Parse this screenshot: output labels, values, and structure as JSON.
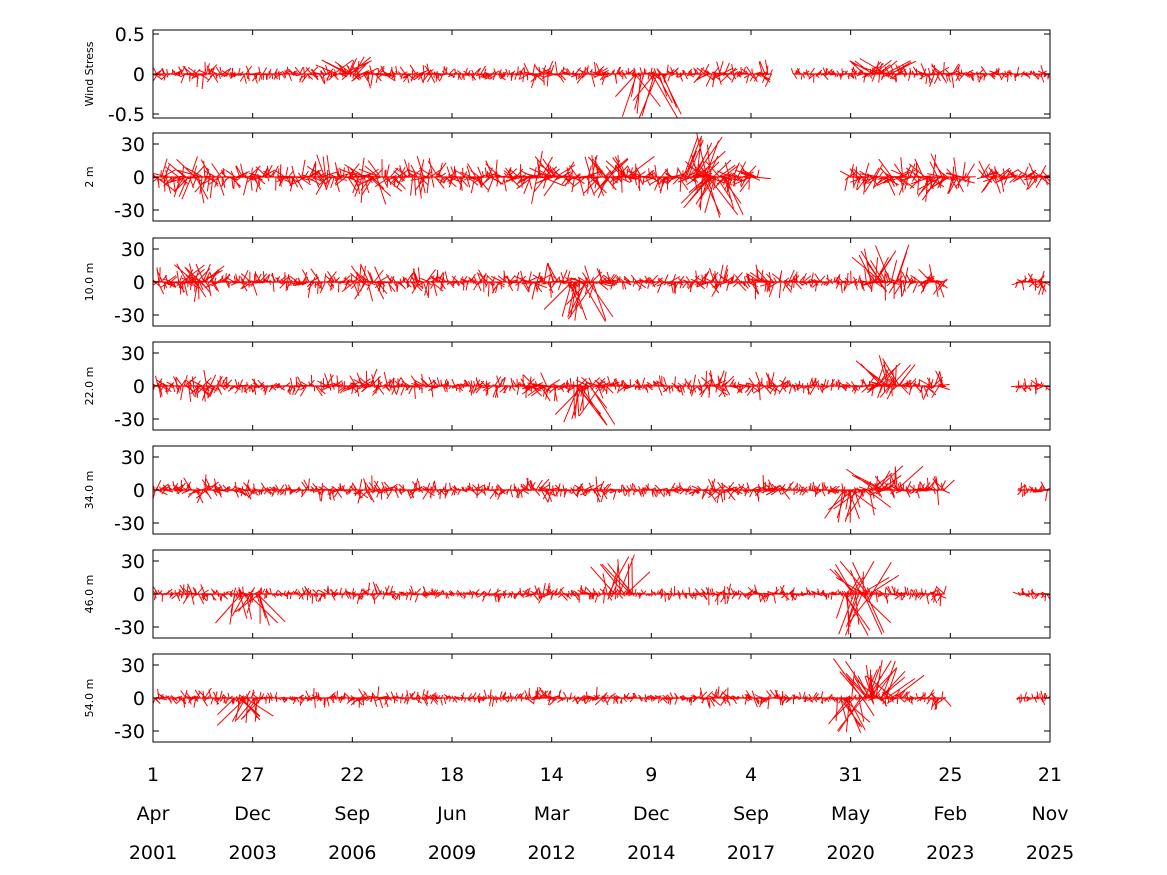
{
  "colors": {
    "series": "#ff0000",
    "axes": "#000000",
    "background": "#ffffff"
  },
  "chart_data": {
    "type": "stick-plot",
    "time_axis": {
      "range": [
        "2001-04-01",
        "2025-11-21"
      ],
      "ticks": [
        {
          "day": "1",
          "month": "Apr",
          "year": "2001",
          "date": "2001-04-01"
        },
        {
          "day": "27",
          "month": "Dec",
          "year": "2003",
          "date": "2003-12-27"
        },
        {
          "day": "22",
          "month": "Sep",
          "year": "2006",
          "date": "2006-09-22"
        },
        {
          "day": "18",
          "month": "Jun",
          "year": "2009",
          "date": "2009-06-18"
        },
        {
          "day": "14",
          "month": "Mar",
          "year": "2012",
          "date": "2012-03-14"
        },
        {
          "day": "9",
          "month": "Dec",
          "year": "2014",
          "date": "2014-12-09"
        },
        {
          "day": "4",
          "month": "Sep",
          "year": "2017",
          "date": "2017-09-04"
        },
        {
          "day": "31",
          "month": "May",
          "year": "2020",
          "date": "2020-05-31"
        },
        {
          "day": "25",
          "month": "Feb",
          "year": "2023",
          "date": "2023-02-25"
        },
        {
          "day": "21",
          "month": "Nov",
          "year": "2025",
          "date": "2025-11-21"
        }
      ]
    },
    "panels": [
      {
        "ylabel": "Wind Stress",
        "ylim": [
          -0.55,
          0.55
        ],
        "yticks": [
          {
            "v": 0.5,
            "label": "0.5"
          },
          {
            "v": 0,
            "label": "0"
          },
          {
            "v": -0.5,
            "label": "-0.5"
          }
        ],
        "amplitude": 0.2,
        "segments": [
          [
            "2001-04-20",
            "2018-04-01"
          ],
          [
            "2018-11-01",
            "2025-11-21"
          ]
        ],
        "spikes": [
          [
            "2014-11-15",
            -0.55
          ],
          [
            "2006-07-01",
            0.22
          ],
          [
            "2021-03-01",
            0.2
          ]
        ]
      },
      {
        "ylabel": "2 m",
        "ylim": [
          -40,
          40
        ],
        "yticks": [
          {
            "v": 30,
            "label": "30"
          },
          {
            "v": 0,
            "label": "0"
          },
          {
            "v": -30,
            "label": "-30"
          }
        ],
        "amplitude": 28,
        "segments": [
          [
            "2001-04-15",
            "2017-11-15"
          ],
          [
            "2020-05-01",
            "2023-09-15"
          ],
          [
            "2024-01-01",
            "2025-11-21"
          ]
        ],
        "spikes": [
          [
            "2016-03-15",
            40
          ],
          [
            "2016-09-01",
            -38
          ],
          [
            "2013-12-01",
            20
          ]
        ]
      },
      {
        "ylabel": "10.0 m",
        "ylim": [
          -40,
          40
        ],
        "yticks": [
          {
            "v": 30,
            "label": "30"
          },
          {
            "v": 0,
            "label": "0"
          },
          {
            "v": -30,
            "label": "-30"
          }
        ],
        "amplitude": 20,
        "segments": [
          [
            "2001-04-15",
            "2023-01-01"
          ],
          [
            "2025-01-01",
            "2025-11-01"
          ]
        ],
        "spikes": [
          [
            "2021-05-01",
            35
          ],
          [
            "2013-01-15",
            -38
          ],
          [
            "2002-06-01",
            18
          ]
        ]
      },
      {
        "ylabel": "22.0 m",
        "ylim": [
          -40,
          40
        ],
        "yticks": [
          {
            "v": 30,
            "label": "30"
          },
          {
            "v": 0,
            "label": "0"
          },
          {
            "v": -30,
            "label": "-30"
          }
        ],
        "amplitude": 17,
        "segments": [
          [
            "2001-04-15",
            "2023-01-01"
          ],
          [
            "2025-01-01",
            "2025-11-01"
          ]
        ],
        "spikes": [
          [
            "2021-07-01",
            30
          ],
          [
            "2013-03-01",
            -36
          ]
        ]
      },
      {
        "ylabel": "34.0 m",
        "ylim": [
          -40,
          40
        ],
        "yticks": [
          {
            "v": 30,
            "label": "30"
          },
          {
            "v": 0,
            "label": "0"
          },
          {
            "v": -30,
            "label": "-30"
          }
        ],
        "amplitude": 15,
        "segments": [
          [
            "2001-04-15",
            "2023-01-01"
          ],
          [
            "2025-01-01",
            "2025-11-01"
          ]
        ],
        "spikes": [
          [
            "2021-05-01",
            24
          ],
          [
            "2020-08-01",
            -30
          ]
        ]
      },
      {
        "ylabel": "46.0 m",
        "ylim": [
          -40,
          40
        ],
        "yticks": [
          {
            "v": 30,
            "label": "30"
          },
          {
            "v": 0,
            "label": "0"
          },
          {
            "v": -30,
            "label": "-30"
          }
        ],
        "amplitude": 12,
        "segments": [
          [
            "2001-04-15",
            "2023-01-01"
          ],
          [
            "2025-01-01",
            "2025-11-01"
          ]
        ],
        "spikes": [
          [
            "2014-02-01",
            36
          ],
          [
            "2020-09-15",
            30
          ],
          [
            "2020-08-15",
            -38
          ],
          [
            "2003-11-01",
            -32
          ]
        ]
      },
      {
        "ylabel": "54.0 m",
        "ylim": [
          -40,
          40
        ],
        "yticks": [
          {
            "v": 30,
            "label": "30"
          },
          {
            "v": 0,
            "label": "0"
          },
          {
            "v": -30,
            "label": "-30"
          }
        ],
        "amplitude": 12,
        "segments": [
          [
            "2001-04-15",
            "2023-01-01"
          ],
          [
            "2025-01-01",
            "2025-11-01"
          ]
        ],
        "spikes": [
          [
            "2020-10-01",
            38
          ],
          [
            "2021-04-01",
            34
          ],
          [
            "2020-06-01",
            -32
          ],
          [
            "2003-11-15",
            -30
          ]
        ]
      }
    ]
  }
}
